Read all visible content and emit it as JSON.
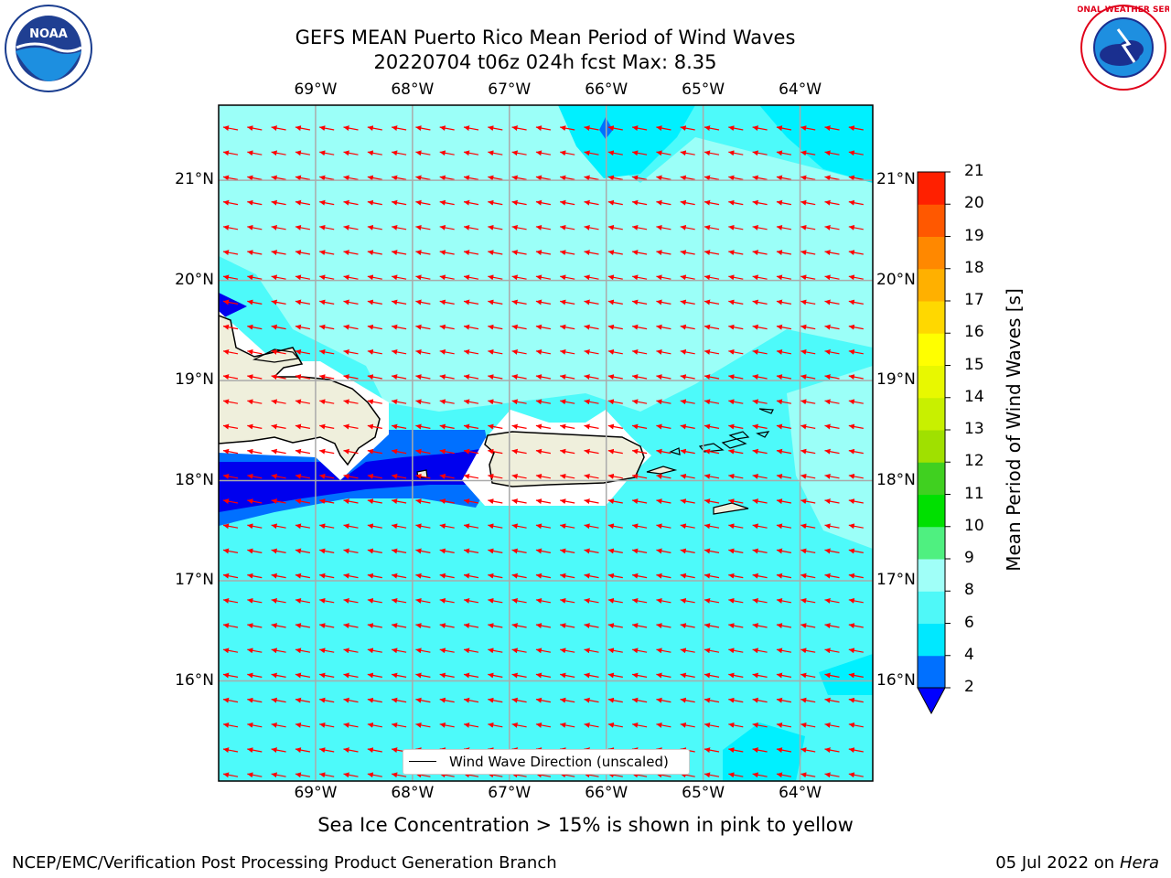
{
  "header": {
    "title_line1": "GEFS MEAN Puerto Rico Mean Period of Wind Waves",
    "title_line2": "20220704 t06z 024h fcst   Max: 8.35"
  },
  "logos": {
    "left": "noaa-logo",
    "right": "national-weather-service-logo",
    "left_text": "NOAA",
    "right_text": "NATIONAL WEATHER SERVICE"
  },
  "map": {
    "lon_labels": [
      "69°W",
      "68°W",
      "67°W",
      "66°W",
      "65°W",
      "64°W"
    ],
    "lat_labels": [
      "21°N",
      "20°N",
      "19°N",
      "18°N",
      "17°N",
      "16°N"
    ],
    "lon_values": [
      -69,
      -68,
      -67,
      -66,
      -65,
      -64
    ],
    "lat_values": [
      21,
      20,
      19,
      18,
      17,
      16
    ],
    "extent": {
      "lon_min": -70,
      "lon_max": -63.25,
      "lat_min": 15.0,
      "lat_max": 21.75
    },
    "arrow_direction": "west-southwest",
    "colors": {
      "land": "#efefdc",
      "ocean_light": "#9bfff8",
      "ocean_mid": "#4dfafa",
      "ocean_cyan": "#00f0ff",
      "arrow": "#ff0000"
    }
  },
  "legend": {
    "label": "Wind Wave Direction (unscaled)"
  },
  "colorbar": {
    "title": "Mean Period of Wind Waves [s]",
    "ticks": [
      "2",
      "4",
      "6",
      "8",
      "9",
      "10",
      "11",
      "12",
      "13",
      "14",
      "15",
      "16",
      "17",
      "18",
      "19",
      "20",
      "21"
    ],
    "colors": [
      "#0070ff",
      "#00e8ff",
      "#4ff8f8",
      "#a0fff8",
      "#4ff080",
      "#00e000",
      "#40d020",
      "#a0e000",
      "#c8f000",
      "#e8f800",
      "#ffff00",
      "#ffd800",
      "#ffb000",
      "#ff8800",
      "#ff5800",
      "#ff2000"
    ],
    "under_color": "#0000ff"
  },
  "subtitle": "Sea Ice Concentration > 15% is shown in pink to yellow",
  "footer": {
    "left": "NCEP/EMC/Verification Post Processing Product Generation Branch",
    "right_date": "05 Jul 2022 on ",
    "right_host": "Hera"
  }
}
